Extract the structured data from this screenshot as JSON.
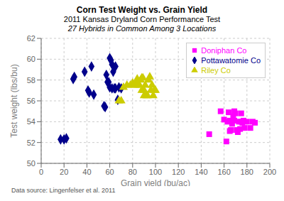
{
  "chart_data": {
    "type": "scatter",
    "title": "Corn Test Weight vs. Grain Yield",
    "subtitle": [
      "2011 Kansas Dryland Corn Performance Test",
      "27 Hybrids in Common Among 3 Locations"
    ],
    "xlabel": "Grain yield (bu/ac)",
    "ylabel": "Test weight (lbs/bu)",
    "annotations": [
      "Data source: Lingenfelser et al. 2011"
    ],
    "xlim": [
      0,
      200
    ],
    "ylim": [
      50,
      62
    ],
    "xticks": [
      0,
      20,
      40,
      60,
      80,
      100,
      120,
      140,
      160,
      180,
      200
    ],
    "yticks": [
      50,
      52,
      54,
      56,
      58,
      60,
      62
    ],
    "grid": true,
    "legend": "upper right",
    "series": [
      {
        "name": "Doniphan Co",
        "color": "#FF00FF",
        "marker": "square",
        "x": [
          147,
          157,
          160,
          162,
          163,
          164,
          165,
          165,
          166,
          167,
          168,
          169,
          169,
          170,
          171,
          172,
          173,
          174,
          175,
          175,
          176,
          177,
          178,
          180,
          183,
          185,
          187
        ],
        "values": [
          52.8,
          55.0,
          54.2,
          52.1,
          54.0,
          54.9,
          53.1,
          54.1,
          53.2,
          53.8,
          54.5,
          54.1,
          55.0,
          54.8,
          53.2,
          53.0,
          54.0,
          53.3,
          54.8,
          54.0,
          53.9,
          54.1,
          53.4,
          54.0,
          53.4,
          54.0,
          53.9
        ]
      },
      {
        "name": "Pottawatomie Co",
        "color": "#00008B",
        "marker": "diamond",
        "x": [
          17,
          20,
          22,
          28,
          29,
          38,
          41,
          42,
          44,
          46,
          55,
          56,
          57,
          58,
          59,
          60,
          60,
          61,
          62,
          62,
          63,
          64,
          65,
          65,
          67,
          68,
          70
        ],
        "values": [
          52.3,
          52.3,
          52.4,
          58.1,
          58.3,
          58.8,
          57.0,
          56.8,
          59.3,
          56.6,
          55.5,
          55.4,
          58.5,
          57.8,
          57.8,
          60.1,
          57.3,
          59.9,
          59.5,
          57.2,
          58.8,
          57.2,
          57.2,
          59.3,
          56.1,
          57.3,
          57.2
        ]
      },
      {
        "name": "Riley Co",
        "color": "#CCCC00",
        "marker": "triangle",
        "x": [
          68,
          70,
          72,
          75,
          78,
          80,
          82,
          83,
          84,
          85,
          86,
          87,
          88,
          88,
          89,
          90,
          90,
          91,
          92,
          93,
          94,
          95,
          96,
          97,
          98,
          99,
          100
        ],
        "values": [
          56.0,
          56.0,
          57.3,
          57.5,
          57.5,
          57.7,
          57.5,
          57.7,
          58.1,
          57.5,
          57.5,
          58.0,
          58.2,
          57.0,
          58.2,
          56.5,
          57.0,
          57.5,
          56.5,
          56.5,
          58.0,
          58.3,
          57.0,
          57.5,
          56.5,
          57.0,
          57.0
        ]
      }
    ]
  }
}
